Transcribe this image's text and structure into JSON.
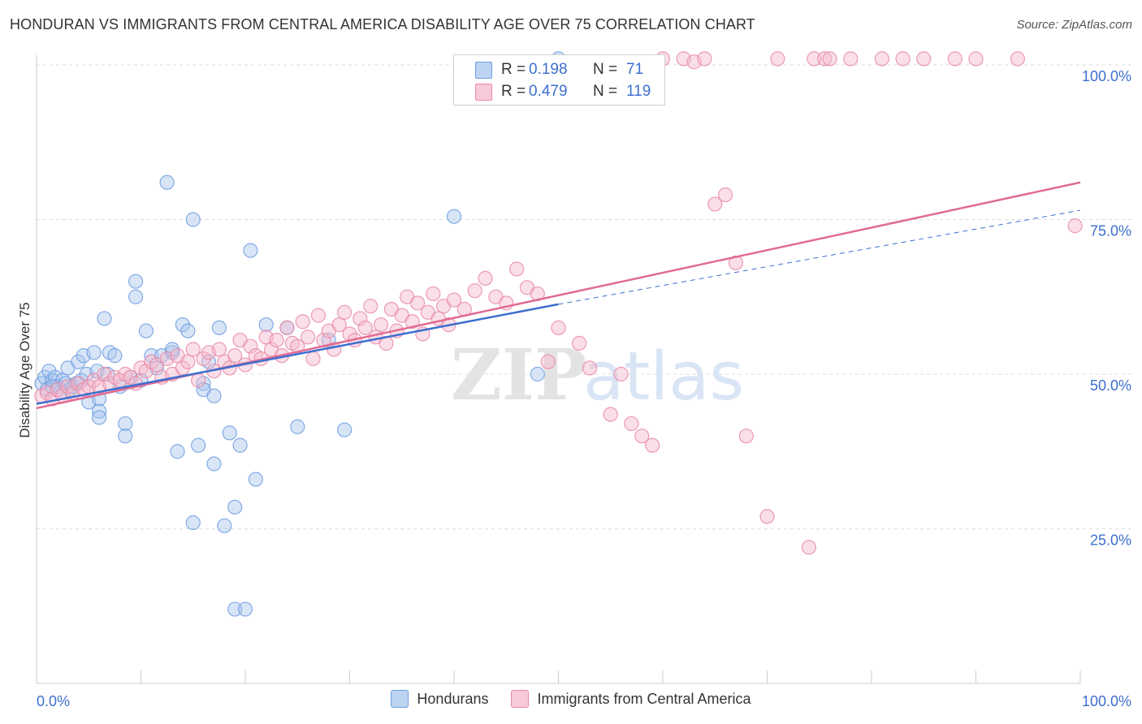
{
  "title": "HONDURAN VS IMMIGRANTS FROM CENTRAL AMERICA DISABILITY AGE OVER 75 CORRELATION CHART",
  "source": "Source: ZipAtlas.com",
  "watermark": {
    "zip": "ZIP",
    "atlas": "atlas"
  },
  "colors": {
    "blue_fill": "#a9c6ee",
    "blue_stroke": "#6f9ee0",
    "blue_line": "#3d6fce",
    "pink_fill": "#f5b8cb",
    "pink_stroke": "#e98aa8",
    "pink_line": "#e06b93",
    "value_text": "#3d6fce",
    "grid": "#dddddd"
  },
  "stats_box": {
    "rows": [
      {
        "series": "Hondurans",
        "r_label": "R =",
        "r_value": "0.198",
        "n_label": "N =",
        "n_value": "71"
      },
      {
        "series": "Immigrants from Central America",
        "r_label": "R =",
        "r_value": "0.479",
        "n_label": "N =",
        "n_value": "119"
      }
    ]
  },
  "legend": {
    "items": [
      {
        "label": "Hondurans"
      },
      {
        "label": "Immigrants from Central America"
      }
    ]
  },
  "chart_data": {
    "type": "scatter",
    "title": "HONDURAN VS IMMIGRANTS FROM CENTRAL AMERICA DISABILITY AGE OVER 75 CORRELATION CHART",
    "xlabel": "",
    "ylabel": "Disability Age Over 75",
    "xlim": [
      0,
      100
    ],
    "ylim": [
      0,
      100
    ],
    "x_tick_labels": [
      "0.0%",
      "100.0%"
    ],
    "y_ticks": [
      25,
      50,
      75,
      100
    ],
    "y_tick_labels": [
      "25.0%",
      "50.0%",
      "75.0%",
      "100.0%"
    ],
    "grid": true,
    "series": [
      {
        "name": "Hondurans",
        "color": "#a9c6ee",
        "trend": {
          "x": [
            0,
            50
          ],
          "y": [
            45.2,
            61.3
          ]
        },
        "trend_extension": {
          "x": [
            50,
            100
          ],
          "y": [
            61.3,
            76.5
          ]
        },
        "points": [
          [
            0.5,
            48.5
          ],
          [
            0.8,
            49.5
          ],
          [
            1.0,
            47.5
          ],
          [
            1.2,
            50.5
          ],
          [
            1.5,
            49.0
          ],
          [
            1.8,
            49.5
          ],
          [
            2.0,
            48.0
          ],
          [
            2.3,
            47.0
          ],
          [
            2.5,
            49.0
          ],
          [
            2.8,
            48.5
          ],
          [
            3.0,
            51.0
          ],
          [
            3.2,
            47.5
          ],
          [
            3.5,
            48.0
          ],
          [
            3.8,
            48.5
          ],
          [
            4.0,
            52.0
          ],
          [
            4.3,
            49.0
          ],
          [
            4.5,
            53.0
          ],
          [
            4.8,
            50.0
          ],
          [
            5.0,
            45.5
          ],
          [
            5.5,
            53.5
          ],
          [
            5.8,
            50.5
          ],
          [
            6.0,
            46.0
          ],
          [
            6.5,
            59.0
          ],
          [
            6.0,
            44.0
          ],
          [
            6.0,
            43.0
          ],
          [
            6.8,
            50.0
          ],
          [
            7.0,
            53.5
          ],
          [
            7.5,
            53.0
          ],
          [
            8.0,
            48.0
          ],
          [
            8.5,
            42.0
          ],
          [
            8.5,
            40.0
          ],
          [
            9.0,
            49.5
          ],
          [
            9.5,
            65.0
          ],
          [
            9.5,
            62.5
          ],
          [
            10.0,
            49.0
          ],
          [
            10.5,
            57.0
          ],
          [
            11.0,
            53.0
          ],
          [
            11.5,
            51.0
          ],
          [
            12.0,
            53.0
          ],
          [
            12.5,
            81.0
          ],
          [
            13.0,
            53.5
          ],
          [
            13.0,
            54.0
          ],
          [
            13.5,
            37.5
          ],
          [
            14.0,
            58.0
          ],
          [
            14.5,
            57.0
          ],
          [
            15.0,
            75.0
          ],
          [
            15.0,
            26.0
          ],
          [
            15.5,
            38.5
          ],
          [
            16.0,
            48.5
          ],
          [
            16.0,
            47.5
          ],
          [
            16.5,
            52.0
          ],
          [
            17.0,
            46.5
          ],
          [
            17.0,
            35.5
          ],
          [
            17.5,
            57.5
          ],
          [
            18.0,
            25.5
          ],
          [
            18.5,
            40.5
          ],
          [
            19.0,
            28.5
          ],
          [
            19.5,
            38.5
          ],
          [
            19.0,
            12.0
          ],
          [
            20.0,
            12.0
          ],
          [
            20.5,
            70.0
          ],
          [
            21.0,
            33.0
          ],
          [
            22.0,
            58.0
          ],
          [
            24.0,
            57.5
          ],
          [
            25.0,
            41.5
          ],
          [
            28.0,
            55.5
          ],
          [
            29.5,
            41.0
          ],
          [
            40.0,
            75.5
          ],
          [
            48.0,
            50.0
          ],
          [
            50.0,
            101.0
          ],
          [
            1.5,
            48.0
          ]
        ]
      },
      {
        "name": "Immigrants from Central America",
        "color": "#f5b8cb",
        "trend": {
          "x": [
            0,
            100
          ],
          "y": [
            44.5,
            81.0
          ]
        },
        "points": [
          [
            0.5,
            46.5
          ],
          [
            1.0,
            47.0
          ],
          [
            1.5,
            46.0
          ],
          [
            2.0,
            47.5
          ],
          [
            2.5,
            46.5
          ],
          [
            3.0,
            48.0
          ],
          [
            3.5,
            47.0
          ],
          [
            4.0,
            48.5
          ],
          [
            4.5,
            47.5
          ],
          [
            5.0,
            48.0
          ],
          [
            5.5,
            49.0
          ],
          [
            6.0,
            48.0
          ],
          [
            6.5,
            50.0
          ],
          [
            7.0,
            48.5
          ],
          [
            7.5,
            49.5
          ],
          [
            8.0,
            49.0
          ],
          [
            8.5,
            50.0
          ],
          [
            9.0,
            49.5
          ],
          [
            9.5,
            48.5
          ],
          [
            10.0,
            51.0
          ],
          [
            10.5,
            50.5
          ],
          [
            11.0,
            52.0
          ],
          [
            11.5,
            51.5
          ],
          [
            12.0,
            49.5
          ],
          [
            12.5,
            52.5
          ],
          [
            13.0,
            50.0
          ],
          [
            13.5,
            53.0
          ],
          [
            14.0,
            51.0
          ],
          [
            14.5,
            52.0
          ],
          [
            15.0,
            54.0
          ],
          [
            15.5,
            49.0
          ],
          [
            16.0,
            52.5
          ],
          [
            16.5,
            53.5
          ],
          [
            17.0,
            50.5
          ],
          [
            17.5,
            54.0
          ],
          [
            18.0,
            52.0
          ],
          [
            18.5,
            51.0
          ],
          [
            19.0,
            53.0
          ],
          [
            19.5,
            55.5
          ],
          [
            20.0,
            51.5
          ],
          [
            20.5,
            54.5
          ],
          [
            21.0,
            53.0
          ],
          [
            21.5,
            52.5
          ],
          [
            22.0,
            56.0
          ],
          [
            22.5,
            54.0
          ],
          [
            23.0,
            55.5
          ],
          [
            23.5,
            53.0
          ],
          [
            24.0,
            57.5
          ],
          [
            24.5,
            55.0
          ],
          [
            25.0,
            54.5
          ],
          [
            25.5,
            58.5
          ],
          [
            26.0,
            56.0
          ],
          [
            26.5,
            52.5
          ],
          [
            27.0,
            59.5
          ],
          [
            27.5,
            55.5
          ],
          [
            28.0,
            57.0
          ],
          [
            28.5,
            54.0
          ],
          [
            29.0,
            58.0
          ],
          [
            29.5,
            60.0
          ],
          [
            30.0,
            56.5
          ],
          [
            30.5,
            55.5
          ],
          [
            31.0,
            59.0
          ],
          [
            31.5,
            57.5
          ],
          [
            32.0,
            61.0
          ],
          [
            32.5,
            56.0
          ],
          [
            33.0,
            58.0
          ],
          [
            33.5,
            55.0
          ],
          [
            34.0,
            60.5
          ],
          [
            34.5,
            57.0
          ],
          [
            35.0,
            59.5
          ],
          [
            35.5,
            62.5
          ],
          [
            36.0,
            58.5
          ],
          [
            36.5,
            61.5
          ],
          [
            37.0,
            56.5
          ],
          [
            37.5,
            60.0
          ],
          [
            38.0,
            63.0
          ],
          [
            38.5,
            59.0
          ],
          [
            39.0,
            61.0
          ],
          [
            39.5,
            58.0
          ],
          [
            40.0,
            62.0
          ],
          [
            41.0,
            60.5
          ],
          [
            42.0,
            63.5
          ],
          [
            43.0,
            65.5
          ],
          [
            44.0,
            62.5
          ],
          [
            45.0,
            61.5
          ],
          [
            46.0,
            67.0
          ],
          [
            47.0,
            64.0
          ],
          [
            48.0,
            63.0
          ],
          [
            49.0,
            52.0
          ],
          [
            50.0,
            57.5
          ],
          [
            52.0,
            55.0
          ],
          [
            53.0,
            51.0
          ],
          [
            55.0,
            43.5
          ],
          [
            56.0,
            50.0
          ],
          [
            57.0,
            42.0
          ],
          [
            58.0,
            40.0
          ],
          [
            59.0,
            38.5
          ],
          [
            60.0,
            101.0
          ],
          [
            62.0,
            101.0
          ],
          [
            63.0,
            100.5
          ],
          [
            64.0,
            101.0
          ],
          [
            65.0,
            77.5
          ],
          [
            66.0,
            79.0
          ],
          [
            67.0,
            68.0
          ],
          [
            68.0,
            40.0
          ],
          [
            70.0,
            27.0
          ],
          [
            71.0,
            101.0
          ],
          [
            74.0,
            22.0
          ],
          [
            74.5,
            101.0
          ],
          [
            75.5,
            101.0
          ],
          [
            76.0,
            101.0
          ],
          [
            78.0,
            101.0
          ],
          [
            81.0,
            101.0
          ],
          [
            83.0,
            101.0
          ],
          [
            85.0,
            101.0
          ],
          [
            88.0,
            101.0
          ],
          [
            90.0,
            101.0
          ],
          [
            94.0,
            101.0
          ],
          [
            99.5,
            74.0
          ]
        ]
      }
    ]
  }
}
